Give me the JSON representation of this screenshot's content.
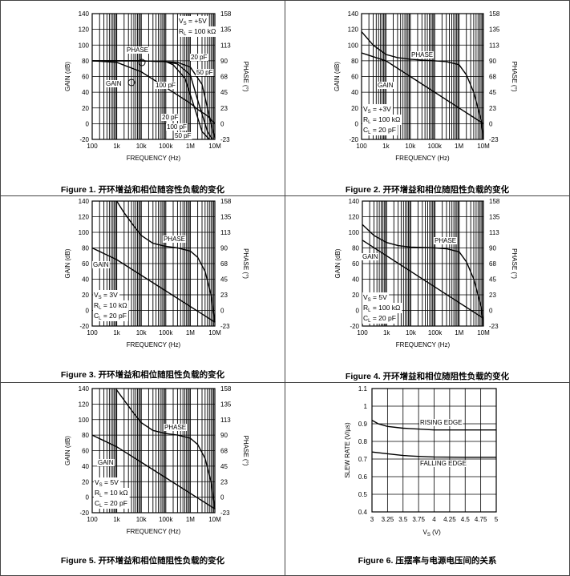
{
  "figures": [
    {
      "caption": "Figure 1. 开环增益和相位随容性负载的变化",
      "chart_data": {
        "type": "line",
        "xscale": "log",
        "xlim": [
          100,
          10000000
        ],
        "ylim": [
          -20,
          140
        ],
        "y2lim": [
          -23,
          158
        ],
        "xlabel": "FREQUENCY (Hz)",
        "ylabel": "GAIN (dB)",
        "y2label": "PHASE (°)",
        "xticks": [
          "100",
          "1k",
          "10k",
          "100k",
          "1M",
          "10M"
        ],
        "yticks": [
          "140",
          "120",
          "100",
          "80",
          "60",
          "40",
          "20",
          "0",
          "-20"
        ],
        "y2ticks": [
          "158",
          "135",
          "113",
          "90",
          "68",
          "45",
          "23",
          "0",
          "-23"
        ],
        "conditions": [
          {
            "sym": "V",
            "sub": "S",
            "rest": " = +5V"
          },
          {
            "sym": "R",
            "sub": "L",
            "rest": " = 100 kΩ"
          }
        ],
        "labels": {
          "phase": "PHASE",
          "gain": "GAIN"
        },
        "cap_labels": [
          "20 pF",
          "50 pF",
          "100 pF",
          "20 pF",
          "100 pF",
          "50 pF"
        ],
        "series": [
          {
            "role": "gain",
            "x": [
              100,
              1000,
              10000,
              100000,
              1000000,
              2000000,
              5000000,
              10000000
            ],
            "y": [
              80,
              78,
              66,
              46,
              26,
              18,
              10,
              0
            ]
          },
          {
            "role": "phase",
            "x": [
              100,
              10000,
              100000,
              300000,
              1000000,
              3000000,
              7000000,
              10000000
            ],
            "y": [
              80,
              80,
              79,
              78,
              72,
              50,
              0,
              -18
            ]
          },
          {
            "role": "phase",
            "x": [
              100,
              10000,
              100000,
              300000,
              1000000,
              2000000,
              5000000,
              8000000
            ],
            "y": [
              80,
              80,
              79,
              76,
              62,
              30,
              -10,
              -20
            ]
          },
          {
            "role": "phase",
            "x": [
              100,
              10000,
              100000,
              200000,
              600000,
              1500000,
              3000000,
              6000000
            ],
            "y": [
              80,
              80,
              79,
              75,
              58,
              20,
              -10,
              -20
            ]
          }
        ]
      }
    },
    {
      "caption": "Figure 2. 开环增益和相位随阻性负载的变化",
      "chart_data": {
        "type": "line",
        "xscale": "log",
        "xlim": [
          100,
          10000000
        ],
        "ylim": [
          -20,
          140
        ],
        "y2lim": [
          -23,
          158
        ],
        "xlabel": "FREQUENCY (Hz)",
        "ylabel": "GAIN (dB)",
        "y2label": "PHASE (°)",
        "xticks": [
          "100",
          "1k",
          "10k",
          "100k",
          "1M",
          "10M"
        ],
        "yticks": [
          "140",
          "120",
          "100",
          "80",
          "60",
          "40",
          "20",
          "0",
          "-20"
        ],
        "y2ticks": [
          "158",
          "135",
          "113",
          "90",
          "68",
          "45",
          "23",
          "0",
          "-23"
        ],
        "conditions": [
          {
            "sym": "V",
            "sub": "S",
            "rest": " = +3V"
          },
          {
            "sym": "R",
            "sub": "L",
            "rest": " = 100 kΩ"
          },
          {
            "sym": "C",
            "sub": "L",
            "rest": " = 20 pF"
          }
        ],
        "labels": {
          "phase": "PHASE",
          "gain": "GAIN"
        },
        "series": [
          {
            "role": "gain",
            "x": [
              100,
              1000,
              10000,
              100000,
              1000000,
              10000000
            ],
            "y": [
              90,
              80,
              60,
              40,
              20,
              0
            ]
          },
          {
            "role": "phase",
            "x": [
              100,
              300,
              1000,
              3000,
              10000,
              30000,
              100000,
              300000,
              1000000,
              2000000,
              4000000,
              8000000,
              10000000
            ],
            "y": [
              117,
              100,
              88,
              84,
              82,
              81,
              80,
              79,
              75,
              62,
              40,
              5,
              -20
            ]
          }
        ]
      }
    },
    {
      "caption": "Figure 3. 开环增益和相位随阻性负载的变化",
      "chart_data": {
        "type": "line",
        "xscale": "log",
        "xlim": [
          100,
          10000000
        ],
        "ylim": [
          -20,
          140
        ],
        "y2lim": [
          -23,
          158
        ],
        "xlabel": "FREQUENCY (Hz)",
        "ylabel": "GAIN (dB)",
        "y2label": "PHASE (°)",
        "xticks": [
          "100",
          "1k",
          "10k",
          "100k",
          "1M",
          "10M"
        ],
        "yticks": [
          "140",
          "120",
          "100",
          "80",
          "60",
          "40",
          "20",
          "0",
          "-20"
        ],
        "y2ticks": [
          "158",
          "135",
          "113",
          "90",
          "68",
          "45",
          "23",
          "0",
          "-23"
        ],
        "conditions": [
          {
            "sym": "V",
            "sub": "S",
            "rest": " = 3V"
          },
          {
            "sym": "R",
            "sub": "L",
            "rest": " = 10 kΩ"
          },
          {
            "sym": "C",
            "sub": "L",
            "rest": " = 20 pF"
          }
        ],
        "labels": {
          "phase": "PHASE",
          "gain": "GAIN"
        },
        "series": [
          {
            "role": "gain",
            "x": [
              100,
              1000,
              10000,
              100000,
              1000000,
              10000000
            ],
            "y": [
              80,
              65,
              45,
              25,
              5,
              -15
            ]
          },
          {
            "role": "phase",
            "x": [
              1000,
              2000,
              5000,
              10000,
              30000,
              100000,
              300000,
              1000000,
              2000000,
              4000000,
              7000000,
              10000000
            ],
            "y": [
              140,
              125,
              108,
              96,
              86,
              82,
              80,
              76,
              68,
              50,
              20,
              -15
            ]
          }
        ]
      }
    },
    {
      "caption": "Figure 4. 开环增益和相位随阻性负载的变化",
      "chart_data": {
        "type": "line",
        "xscale": "log",
        "xlim": [
          100,
          10000000
        ],
        "ylim": [
          -20,
          140
        ],
        "y2lim": [
          -23,
          158
        ],
        "xlabel": "FREQUENCY (Hz)",
        "ylabel": "GAIN (dB)",
        "y2label": "PHASE (°)",
        "xticks": [
          "100",
          "1k",
          "10k",
          "100k",
          "1M",
          "10M"
        ],
        "yticks": [
          "140",
          "120",
          "100",
          "80",
          "60",
          "40",
          "20",
          "0",
          "-20"
        ],
        "y2ticks": [
          "158",
          "135",
          "113",
          "90",
          "68",
          "45",
          "23",
          "0",
          "-23"
        ],
        "conditions": [
          {
            "sym": "V",
            "sub": "S",
            "rest": " = 5V"
          },
          {
            "sym": "R",
            "sub": "L",
            "rest": " = 100 kΩ"
          },
          {
            "sym": "C",
            "sub": "L",
            "rest": " = 20 pF"
          }
        ],
        "labels": {
          "phase": "PHASE",
          "gain": "GAIN"
        },
        "series": [
          {
            "role": "gain",
            "x": [
              100,
              1000,
              10000,
              100000,
              1000000,
              10000000
            ],
            "y": [
              90,
              70,
              50,
              30,
              10,
              -10
            ]
          },
          {
            "role": "phase",
            "x": [
              100,
              300,
              1000,
              3000,
              10000,
              100000,
              300000,
              1000000,
              2000000,
              4000000,
              8000000,
              10000000
            ],
            "y": [
              110,
              96,
              87,
              83,
              81,
              80,
              79,
              75,
              62,
              40,
              5,
              -20
            ]
          }
        ]
      }
    },
    {
      "caption": "Figure 5. 开环增益和相位随阻性负载的变化",
      "chart_data": {
        "type": "line",
        "xscale": "log",
        "xlim": [
          100,
          10000000
        ],
        "ylim": [
          -20,
          140
        ],
        "y2lim": [
          -23,
          158
        ],
        "xlabel": "FREQUENCY (Hz)",
        "ylabel": "GAIN (dB)",
        "y2label": "PHASE (°)",
        "xticks": [
          "100",
          "1k",
          "10k",
          "100k",
          "1M",
          "10M"
        ],
        "yticks": [
          "140",
          "120",
          "100",
          "80",
          "60",
          "40",
          "20",
          "0",
          "-20"
        ],
        "y2ticks": [
          "158",
          "135",
          "113",
          "90",
          "68",
          "45",
          "23",
          "0",
          "-23"
        ],
        "conditions": [
          {
            "sym": "V",
            "sub": "S",
            "rest": " = 5V"
          },
          {
            "sym": "R",
            "sub": "L",
            "rest": " = 10 kΩ"
          },
          {
            "sym": "C",
            "sub": "L",
            "rest": " = 20 pF"
          }
        ],
        "labels": {
          "phase": "PHASE",
          "gain": "GAIN"
        },
        "series": [
          {
            "role": "gain",
            "x": [
              100,
              1000,
              10000,
              100000,
              1000000,
              10000000
            ],
            "y": [
              80,
              65,
              45,
              25,
              5,
              -15
            ]
          },
          {
            "role": "phase",
            "x": [
              1000,
              2000,
              5000,
              10000,
              30000,
              100000,
              300000,
              1000000,
              2000000,
              4000000,
              7000000,
              10000000
            ],
            "y": [
              138,
              125,
              108,
              96,
              86,
              82,
              80,
              76,
              68,
              50,
              20,
              -15
            ]
          }
        ]
      }
    },
    {
      "caption": "Figure 6. 压摆率与电源电压间的关系",
      "chart_data": {
        "type": "line",
        "xscale": "linear",
        "xlim": [
          3,
          5
        ],
        "ylim": [
          0.4,
          1.1
        ],
        "ylabel": "SLEW RATE (V/µs)",
        "xlabel": {
          "sym": "V",
          "sub": "S",
          "rest": " (V)"
        },
        "xticks": [
          "3",
          "3.25",
          "3.5",
          "3.75",
          "4",
          "4.25",
          "4.5",
          "4.75",
          "5"
        ],
        "yticks": [
          "1.1",
          "1",
          "0.9",
          "0.8",
          "0.7",
          "0.6",
          "0.5",
          "0.4"
        ],
        "series": [
          {
            "name": "RISING EDGE",
            "x": [
              3,
              3.1,
              3.25,
              3.5,
              3.75,
              4,
              4.5,
              5
            ],
            "y": [
              0.92,
              0.9,
              0.885,
              0.875,
              0.87,
              0.865,
              0.865,
              0.865
            ]
          },
          {
            "name": "FALLING EDGE",
            "x": [
              3,
              3.25,
              3.5,
              3.75,
              4,
              4.5,
              5
            ],
            "y": [
              0.74,
              0.73,
              0.72,
              0.715,
              0.712,
              0.71,
              0.71
            ]
          }
        ]
      }
    }
  ]
}
